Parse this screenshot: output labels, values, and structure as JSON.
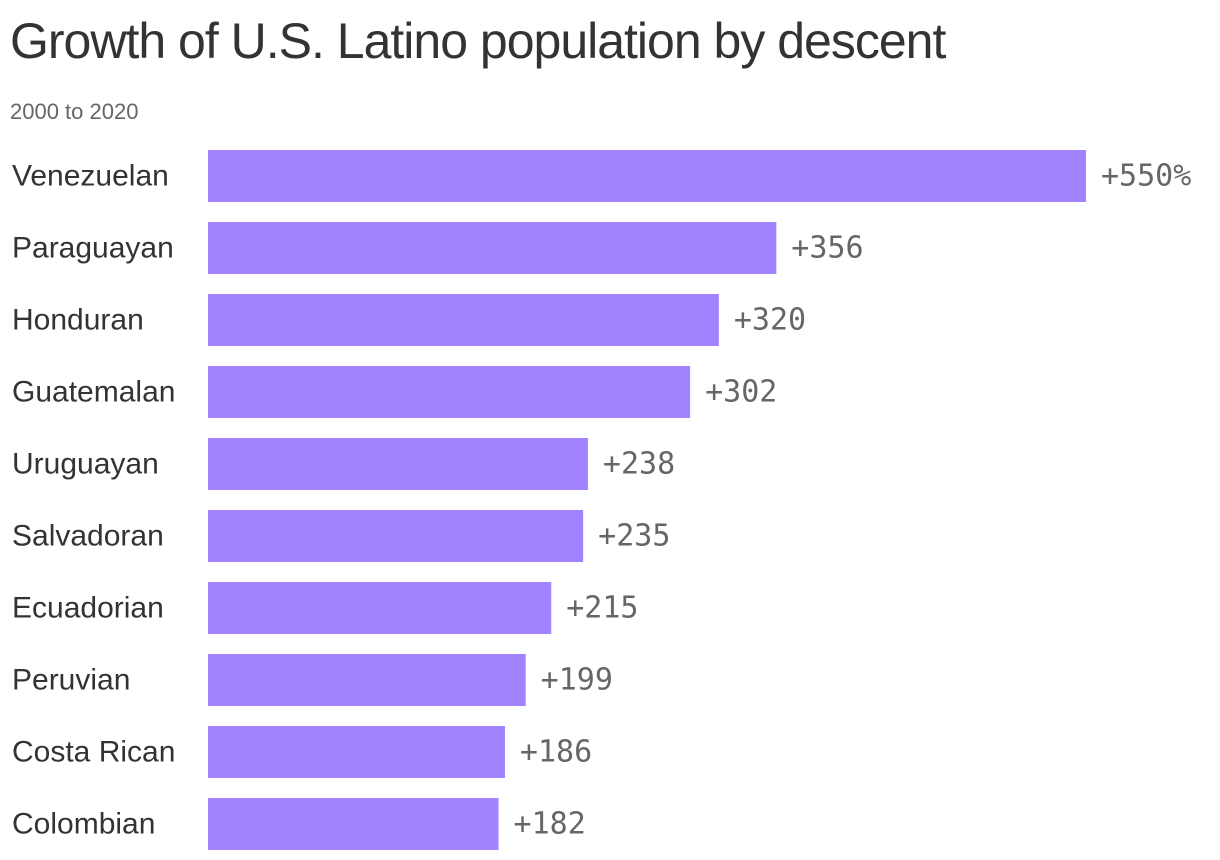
{
  "title": "Growth of U.S. Latino population by descent",
  "subtitle": "2000 to 2020",
  "colors": {
    "bar": "#a182ff",
    "category_text": "#333333",
    "value_text": "#666666"
  },
  "chart_data": {
    "type": "bar",
    "orientation": "horizontal",
    "title": "Growth of U.S. Latino population by descent",
    "subtitle": "2000 to 2020",
    "categories": [
      "Venezuelan",
      "Paraguayan",
      "Honduran",
      "Guatemalan",
      "Uruguayan",
      "Salvadoran",
      "Ecuadorian",
      "Peruvian",
      "Costa Rican",
      "Colombian"
    ],
    "values": [
      550,
      356,
      320,
      302,
      238,
      235,
      215,
      199,
      186,
      182
    ],
    "value_labels": [
      "+550%",
      "+356",
      "+320",
      "+302",
      "+238",
      "+235",
      "+215",
      "+199",
      "+186",
      "+182"
    ],
    "unit": "%",
    "xlim": [
      0,
      550
    ],
    "grid": false,
    "legend": "none"
  }
}
